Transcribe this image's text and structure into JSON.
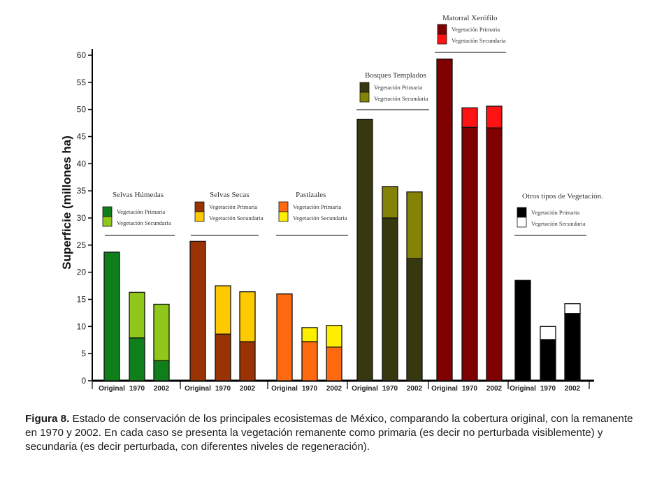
{
  "chart_data": {
    "type": "bar",
    "ylabel": "Superficie (millones ha)",
    "ylim": [
      0,
      60
    ],
    "yticks": [
      0,
      5,
      10,
      15,
      20,
      25,
      30,
      35,
      40,
      45,
      50,
      55,
      60
    ],
    "bar_labels": [
      "Original",
      "1970",
      "2002"
    ],
    "groups": [
      {
        "name": "Selvas Húmedas",
        "legend": [
          "Vegetación Primaria",
          "Vegetación Secundaria"
        ],
        "colors": {
          "primary": "#0f7f1c",
          "secondary": "#8fc71a"
        },
        "bars": [
          {
            "label": "Original",
            "primary": 23.7,
            "secondary": 0
          },
          {
            "label": "1970",
            "primary": 7.9,
            "secondary": 8.4
          },
          {
            "label": "2002",
            "primary": 3.7,
            "secondary": 10.4
          }
        ]
      },
      {
        "name": "Selvas Secas",
        "legend": [
          "Vegetación Primaria",
          "Vegetación Secundaria"
        ],
        "colors": {
          "primary": "#9a3304",
          "secondary": "#ffc900"
        },
        "bars": [
          {
            "label": "Original",
            "primary": 25.7,
            "secondary": 0
          },
          {
            "label": "1970",
            "primary": 8.6,
            "secondary": 8.9
          },
          {
            "label": "2002",
            "primary": 7.2,
            "secondary": 9.2
          }
        ]
      },
      {
        "name": "Pastizales",
        "legend": [
          "Vegetación Primaria",
          "Vegetación Secundaria"
        ],
        "colors": {
          "primary": "#ff6a10",
          "secondary": "#ffee00"
        },
        "bars": [
          {
            "label": "Original",
            "primary": 16.0,
            "secondary": 0
          },
          {
            "label": "1970",
            "primary": 7.2,
            "secondary": 2.6
          },
          {
            "label": "2002",
            "primary": 6.2,
            "secondary": 4.0
          }
        ]
      },
      {
        "name": "Bosques Templados",
        "legend": [
          "Vegetación Primaria",
          "Vegetación Secundaria"
        ],
        "colors": {
          "primary": "#383810",
          "secondary": "#858208"
        },
        "bars": [
          {
            "label": "Original",
            "primary": 48.2,
            "secondary": 0
          },
          {
            "label": "1970",
            "primary": 30.0,
            "secondary": 5.8
          },
          {
            "label": "2002",
            "primary": 22.5,
            "secondary": 12.3
          }
        ]
      },
      {
        "name": "Matorral Xerófilo",
        "legend": [
          "Vegetación Primaria",
          "Vegetación Secundaria"
        ],
        "colors": {
          "primary": "#7e0000",
          "secondary": "#ff1212"
        },
        "bars": [
          {
            "label": "Original",
            "primary": 59.3,
            "secondary": 0
          },
          {
            "label": "1970",
            "primary": 46.7,
            "secondary": 3.6
          },
          {
            "label": "2002",
            "primary": 46.6,
            "secondary": 4.0
          }
        ]
      },
      {
        "name": "Otros tipos de Vegetación.",
        "legend": [
          "Vegetación Primaria",
          "Vegetación Secundaria"
        ],
        "colors": {
          "primary": "#000000",
          "secondary": "#ffffff"
        },
        "bars": [
          {
            "label": "Original",
            "primary": 18.5,
            "secondary": 0
          },
          {
            "label": "1970",
            "primary": 7.6,
            "secondary": 2.4
          },
          {
            "label": "2002",
            "primary": 12.4,
            "secondary": 1.8
          }
        ]
      }
    ]
  },
  "caption": {
    "label": "Figura 8.",
    "text": " Estado de conservación de los principales ecosistemas de México, comparando la cobertura original, con la remanente en 1970 y 2002. En cada caso se presenta la vegetación remanente como primaria (es decir no perturbada visiblemente) y secundaria (es decir perturbada, con diferentes niveles de regeneración)."
  }
}
